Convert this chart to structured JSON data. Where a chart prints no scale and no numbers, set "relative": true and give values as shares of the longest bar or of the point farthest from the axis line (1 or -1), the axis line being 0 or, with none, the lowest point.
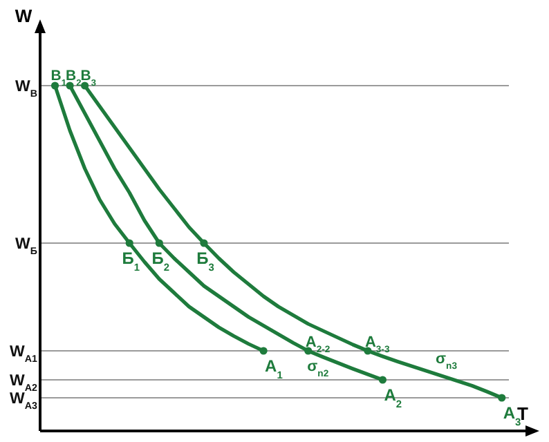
{
  "chart_data": {
    "type": "line",
    "relative": true,
    "xlabel": "T",
    "ylabel": "W",
    "line_style": "solid",
    "categories": [
      null,
      null,
      null,
      null,
      null,
      null,
      null,
      null,
      null,
      null,
      null,
      null,
      null,
      null,
      null,
      null,
      null,
      null,
      null,
      null,
      null,
      null,
      null,
      null,
      null,
      null,
      null,
      null,
      null,
      null,
      null,
      null,
      null
    ],
    "series": [
      {
        "color": "#1e7b3c",
        "values": [
          null,
          1,
          0.87,
          0.76,
          0.67,
          0.6,
          0.544,
          0.49,
          0.44,
          0.4,
          0.36,
          0.33,
          0.3,
          0.275,
          0.252,
          0.232,
          null,
          null,
          null,
          null,
          null,
          null,
          null,
          null,
          null,
          null,
          null,
          null,
          null,
          null,
          null,
          null,
          null
        ]
      },
      {
        "name": "σ$_{n2}$",
        "color": "#1e7b3c",
        "values": [
          null,
          null,
          1,
          0.92,
          0.84,
          0.76,
          0.69,
          0.61,
          0.544,
          0.5,
          0.46,
          0.42,
          0.39,
          0.36,
          0.33,
          0.305,
          0.28,
          0.255,
          0.232,
          0.214,
          0.197,
          0.18,
          0.164,
          0.148,
          null,
          null,
          null,
          null,
          null,
          null,
          null,
          null,
          null
        ]
      },
      {
        "name": "σ$_{n3}$",
        "color": "#1e7b3c",
        "values": [
          null,
          null,
          null,
          1,
          0.94,
          0.88,
          0.82,
          0.76,
          0.7,
          0.645,
          0.59,
          0.544,
          0.5,
          0.46,
          0.425,
          0.39,
          0.36,
          0.335,
          0.31,
          0.29,
          0.27,
          0.25,
          0.232,
          0.216,
          0.201,
          0.187,
          0.173,
          0.159,
          0.145,
          0.131,
          0.114,
          0.096,
          null
        ]
      }
    ],
    "ref_lines": [
      {
        "axis": "y",
        "value": 1,
        "label": "W$_{В}$",
        "color": "#9a9a9a"
      },
      {
        "axis": "y",
        "value": 0.544,
        "label": "W$_{Б}$",
        "color": "#9a9a9a"
      },
      {
        "axis": "y",
        "value": 0.232,
        "label": "W$_{A1}$",
        "color": "#9a9a9a"
      },
      {
        "axis": "y",
        "value": 0.148,
        "label": "W$_{A2}$",
        "color": "#9a9a9a"
      },
      {
        "axis": "y",
        "value": 0.096,
        "label": "W$_{A3}$",
        "color": "#9a9a9a"
      }
    ],
    "annotations": [
      {
        "text": "В$_{1}$",
        "y": 1
      },
      {
        "text": "В$_{2}$",
        "y": 1
      },
      {
        "text": "В$_{3}$",
        "y": 1
      },
      {
        "text": "Б$_{1}$",
        "y": 0.544
      },
      {
        "text": "Б$_{2}$",
        "y": 0.544
      },
      {
        "text": "Б$_{3}$",
        "y": 0.544
      },
      {
        "text": "A$_{1}$",
        "y": 0.232
      },
      {
        "text": "A$_{2-2}$",
        "y": 0.232
      },
      {
        "text": "A$_{3-3}$",
        "y": 0.232
      },
      {
        "text": "A$_{2}$",
        "y": 0.148
      },
      {
        "text": "A$_{3}$",
        "y": 0.096
      }
    ]
  }
}
